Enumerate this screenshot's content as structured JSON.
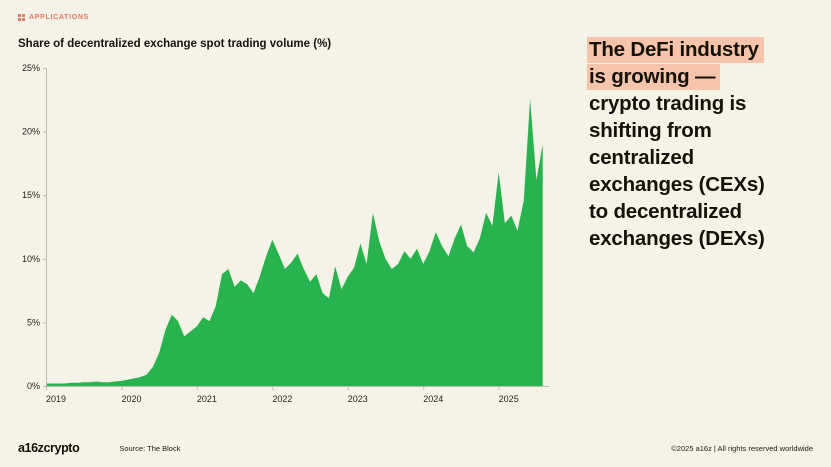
{
  "header": {
    "eyebrow": "APPLICATIONS"
  },
  "colors": {
    "background": "#f5f2e8",
    "accent_green": "#29b34e",
    "highlight_peach": "#f6c3ab",
    "eyebrow_red": "#e4765b",
    "axis_gray": "#bdbab0"
  },
  "chart_data": {
    "type": "area",
    "title": "Share of decentralized exchange spot trading volume (%)",
    "xlabel": "",
    "ylabel": "",
    "grid": false,
    "legend": false,
    "fill_color": "#29b34e",
    "xlim": [
      2019,
      2025.667
    ],
    "ylim": [
      0,
      25
    ],
    "x_ticks": [
      2019,
      2020,
      2021,
      2022,
      2023,
      2024,
      2025
    ],
    "x_tick_labels": [
      "2019",
      "2020",
      "2021",
      "2022",
      "2023",
      "2024",
      "2025"
    ],
    "y_tick_values": [
      0,
      5,
      10,
      15,
      20,
      25
    ],
    "y_ticks": [
      "0%",
      "5%",
      "10%",
      "15%",
      "20%",
      "25%"
    ],
    "x": [
      2019.0,
      2019.083,
      2019.167,
      2019.25,
      2019.333,
      2019.417,
      2019.5,
      2019.583,
      2019.667,
      2019.75,
      2019.833,
      2019.917,
      2020.0,
      2020.083,
      2020.167,
      2020.25,
      2020.333,
      2020.417,
      2020.5,
      2020.583,
      2020.667,
      2020.75,
      2020.833,
      2020.917,
      2021.0,
      2021.083,
      2021.167,
      2021.25,
      2021.333,
      2021.417,
      2021.5,
      2021.583,
      2021.667,
      2021.75,
      2021.833,
      2021.917,
      2022.0,
      2022.083,
      2022.167,
      2022.25,
      2022.333,
      2022.417,
      2022.5,
      2022.583,
      2022.667,
      2022.75,
      2022.833,
      2022.917,
      2023.0,
      2023.083,
      2023.167,
      2023.25,
      2023.333,
      2023.417,
      2023.5,
      2023.583,
      2023.667,
      2023.75,
      2023.833,
      2023.917,
      2024.0,
      2024.083,
      2024.167,
      2024.25,
      2024.333,
      2024.417,
      2024.5,
      2024.583,
      2024.667,
      2024.75,
      2024.833,
      2024.917,
      2025.0,
      2025.083,
      2025.167,
      2025.25,
      2025.333,
      2025.417,
      2025.5,
      2025.583
    ],
    "y": [
      0.2,
      0.2,
      0.2,
      0.2,
      0.25,
      0.25,
      0.3,
      0.3,
      0.35,
      0.3,
      0.3,
      0.35,
      0.4,
      0.5,
      0.6,
      0.7,
      0.9,
      1.5,
      2.6,
      4.4,
      5.6,
      5.1,
      3.9,
      4.3,
      4.7,
      5.4,
      5.1,
      6.3,
      8.8,
      9.2,
      7.8,
      8.3,
      8.0,
      7.3,
      8.6,
      10.2,
      11.5,
      10.4,
      9.2,
      9.7,
      10.4,
      9.2,
      8.2,
      8.8,
      7.3,
      6.9,
      9.4,
      7.6,
      8.6,
      9.3,
      11.2,
      9.6,
      13.6,
      11.4,
      10.0,
      9.2,
      9.6,
      10.6,
      10.0,
      10.8,
      9.6,
      10.6,
      12.1,
      11.0,
      10.2,
      11.6,
      12.7,
      11.0,
      10.5,
      11.6,
      13.6,
      12.6,
      16.8,
      12.8,
      13.4,
      12.2,
      14.6,
      22.6,
      16.2,
      19.0
    ]
  },
  "headline": {
    "highlight_color": "#f6c3ab",
    "lines": [
      {
        "text": "The DeFi industry",
        "highlight": true
      },
      {
        "text": "is growing —",
        "highlight": true
      },
      {
        "text": "crypto trading is",
        "highlight": false
      },
      {
        "text": "shifting from",
        "highlight": false
      },
      {
        "text": "centralized",
        "highlight": false
      },
      {
        "text": "exchanges (CEXs)",
        "highlight": false
      },
      {
        "text": "to decentralized",
        "highlight": false
      },
      {
        "text": "exchanges (DEXs)",
        "highlight": false
      }
    ]
  },
  "footer": {
    "logo": "a16zcrypto",
    "source": "Source: The Block",
    "copyright": "©2025 a16z | All rights reserved worldwide"
  }
}
